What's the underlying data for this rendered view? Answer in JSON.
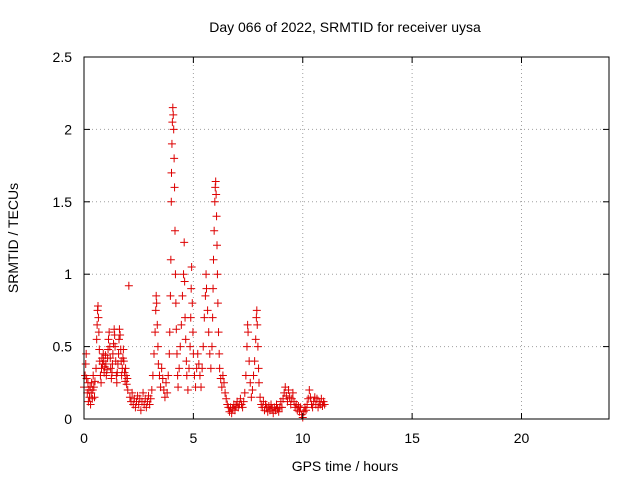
{
  "chart_data": {
    "type": "scatter",
    "title": "Day 066 of 2022, SRMTID for receiver uysa",
    "xlabel": "GPS time / hours",
    "ylabel": "SRMTID / TECUs",
    "xlim": [
      0,
      24
    ],
    "ylim": [
      0,
      2.5
    ],
    "xticks": [
      0,
      5,
      10,
      15,
      20
    ],
    "yticks": [
      0,
      0.5,
      1,
      1.5,
      2,
      2.5
    ],
    "xtick_labels": [
      "0",
      "5",
      "10",
      "15",
      "20"
    ],
    "ytick_labels": [
      "0",
      "0.5",
      "1",
      "1.5",
      "2",
      "2.5"
    ],
    "grid": true,
    "marker": "+",
    "marker_color": "#dd0000",
    "series": [
      {
        "name": "SRMTID",
        "points": [
          [
            0.0,
            0.22
          ],
          [
            0.05,
            0.3
          ],
          [
            0.08,
            0.38
          ],
          [
            0.1,
            0.45
          ],
          [
            0.12,
            0.28
          ],
          [
            0.15,
            0.18
          ],
          [
            0.18,
            0.25
          ],
          [
            0.2,
            0.12
          ],
          [
            0.22,
            0.2
          ],
          [
            0.25,
            0.15
          ],
          [
            0.28,
            0.22
          ],
          [
            0.3,
            0.1
          ],
          [
            0.33,
            0.18
          ],
          [
            0.35,
            0.25
          ],
          [
            0.38,
            0.14
          ],
          [
            0.4,
            0.2
          ],
          [
            0.42,
            0.3
          ],
          [
            0.45,
            0.22
          ],
          [
            0.48,
            0.15
          ],
          [
            0.5,
            0.26
          ],
          [
            0.55,
            0.35
          ],
          [
            0.58,
            0.55
          ],
          [
            0.6,
            0.65
          ],
          [
            0.62,
            0.75
          ],
          [
            0.64,
            0.78
          ],
          [
            0.66,
            0.7
          ],
          [
            0.68,
            0.6
          ],
          [
            0.7,
            0.48
          ],
          [
            0.72,
            0.4
          ],
          [
            0.75,
            0.3
          ],
          [
            0.78,
            0.25
          ],
          [
            0.8,
            0.35
          ],
          [
            0.82,
            0.42
          ],
          [
            0.85,
            0.38
          ],
          [
            0.88,
            0.45
          ],
          [
            0.9,
            0.4
          ],
          [
            0.92,
            0.32
          ],
          [
            0.95,
            0.36
          ],
          [
            0.98,
            0.44
          ],
          [
            1.0,
            0.38
          ],
          [
            1.02,
            0.3
          ],
          [
            1.05,
            0.34
          ],
          [
            1.08,
            0.42
          ],
          [
            1.1,
            0.48
          ],
          [
            1.12,
            0.55
          ],
          [
            1.15,
            0.6
          ],
          [
            1.18,
            0.5
          ],
          [
            1.2,
            0.42
          ],
          [
            1.22,
            0.35
          ],
          [
            1.25,
            0.28
          ],
          [
            1.28,
            0.32
          ],
          [
            1.3,
            0.38
          ],
          [
            1.32,
            0.45
          ],
          [
            1.35,
            0.52
          ],
          [
            1.38,
            0.62
          ],
          [
            1.4,
            0.58
          ],
          [
            1.42,
            0.5
          ],
          [
            1.45,
            0.4
          ],
          [
            1.48,
            0.3
          ],
          [
            1.5,
            0.25
          ],
          [
            1.52,
            0.32
          ],
          [
            1.55,
            0.38
          ],
          [
            1.58,
            0.45
          ],
          [
            1.6,
            0.55
          ],
          [
            1.62,
            0.62
          ],
          [
            1.65,
            0.58
          ],
          [
            1.68,
            0.48
          ],
          [
            1.7,
            0.4
          ],
          [
            1.72,
            0.3
          ],
          [
            1.75,
            0.35
          ],
          [
            1.78,
            0.42
          ],
          [
            1.8,
            0.48
          ],
          [
            1.82,
            0.4
          ],
          [
            1.85,
            0.32
          ],
          [
            1.88,
            0.26
          ],
          [
            1.9,
            0.35
          ],
          [
            1.92,
            0.3
          ],
          [
            1.95,
            0.24
          ],
          [
            1.98,
            0.28
          ],
          [
            2.0,
            0.2
          ],
          [
            2.05,
            0.92
          ],
          [
            2.1,
            0.15
          ],
          [
            2.15,
            0.12
          ],
          [
            2.2,
            0.18
          ],
          [
            2.25,
            0.1
          ],
          [
            2.3,
            0.14
          ],
          [
            2.35,
            0.08
          ],
          [
            2.4,
            0.12
          ],
          [
            2.45,
            0.16
          ],
          [
            2.5,
            0.1
          ],
          [
            2.55,
            0.14
          ],
          [
            2.6,
            0.06
          ],
          [
            2.65,
            0.12
          ],
          [
            2.7,
            0.18
          ],
          [
            2.75,
            0.1
          ],
          [
            2.8,
            0.14
          ],
          [
            2.85,
            0.08
          ],
          [
            2.9,
            0.12
          ],
          [
            2.95,
            0.16
          ],
          [
            3.0,
            0.1
          ],
          [
            3.05,
            0.14
          ],
          [
            3.1,
            0.2
          ],
          [
            3.15,
            0.3
          ],
          [
            3.2,
            0.45
          ],
          [
            3.25,
            0.6
          ],
          [
            3.28,
            0.75
          ],
          [
            3.3,
            0.85
          ],
          [
            3.32,
            0.8
          ],
          [
            3.35,
            0.65
          ],
          [
            3.38,
            0.5
          ],
          [
            3.4,
            0.38
          ],
          [
            3.45,
            0.3
          ],
          [
            3.5,
            0.22
          ],
          [
            3.55,
            0.35
          ],
          [
            3.6,
            0.28
          ],
          [
            3.65,
            0.2
          ],
          [
            3.7,
            0.15
          ],
          [
            3.75,
            0.25
          ],
          [
            3.8,
            0.18
          ],
          [
            3.85,
            0.3
          ],
          [
            3.9,
            0.45
          ],
          [
            3.92,
            0.6
          ],
          [
            3.95,
            0.85
          ],
          [
            3.97,
            1.1
          ],
          [
            3.99,
            1.5
          ],
          [
            4.0,
            1.7
          ],
          [
            4.02,
            1.9
          ],
          [
            4.04,
            2.05
          ],
          [
            4.06,
            2.15
          ],
          [
            4.08,
            2.1
          ],
          [
            4.1,
            2.0
          ],
          [
            4.12,
            1.8
          ],
          [
            4.14,
            1.6
          ],
          [
            4.16,
            1.3
          ],
          [
            4.18,
            1.0
          ],
          [
            4.2,
            0.8
          ],
          [
            4.22,
            0.62
          ],
          [
            4.25,
            0.45
          ],
          [
            4.28,
            0.3
          ],
          [
            4.3,
            0.22
          ],
          [
            4.35,
            0.35
          ],
          [
            4.4,
            0.5
          ],
          [
            4.45,
            0.65
          ],
          [
            4.5,
            0.85
          ],
          [
            4.55,
            1.0
          ],
          [
            4.58,
            1.22
          ],
          [
            4.6,
            0.95
          ],
          [
            4.62,
            0.7
          ],
          [
            4.65,
            0.55
          ],
          [
            4.68,
            0.4
          ],
          [
            4.7,
            0.3
          ],
          [
            4.75,
            0.2
          ],
          [
            4.8,
            0.35
          ],
          [
            4.85,
            0.5
          ],
          [
            4.88,
            0.7
          ],
          [
            4.9,
            0.9
          ],
          [
            4.92,
            1.05
          ],
          [
            4.95,
            0.8
          ],
          [
            4.98,
            0.6
          ],
          [
            5.0,
            0.45
          ],
          [
            5.05,
            0.3
          ],
          [
            5.1,
            0.22
          ],
          [
            5.15,
            0.35
          ],
          [
            5.2,
            0.45
          ],
          [
            5.25,
            0.38
          ],
          [
            5.3,
            0.3
          ],
          [
            5.35,
            0.22
          ],
          [
            5.4,
            0.35
          ],
          [
            5.45,
            0.5
          ],
          [
            5.5,
            0.7
          ],
          [
            5.55,
            0.85
          ],
          [
            5.58,
            1.0
          ],
          [
            5.6,
            0.9
          ],
          [
            5.65,
            0.75
          ],
          [
            5.7,
            0.6
          ],
          [
            5.75,
            0.45
          ],
          [
            5.8,
            0.35
          ],
          [
            5.85,
            0.5
          ],
          [
            5.88,
            0.7
          ],
          [
            5.9,
            0.9
          ],
          [
            5.92,
            1.1
          ],
          [
            5.95,
            1.3
          ],
          [
            5.98,
            1.5
          ],
          [
            6.0,
            1.6
          ],
          [
            6.02,
            1.64
          ],
          [
            6.04,
            1.55
          ],
          [
            6.06,
            1.4
          ],
          [
            6.08,
            1.2
          ],
          [
            6.1,
            1.0
          ],
          [
            6.12,
            0.8
          ],
          [
            6.15,
            0.6
          ],
          [
            6.18,
            0.45
          ],
          [
            6.2,
            0.35
          ],
          [
            6.25,
            0.28
          ],
          [
            6.3,
            0.22
          ],
          [
            6.35,
            0.3
          ],
          [
            6.4,
            0.25
          ],
          [
            6.45,
            0.18
          ],
          [
            6.5,
            0.14
          ],
          [
            6.55,
            0.1
          ],
          [
            6.6,
            0.08
          ],
          [
            6.65,
            0.05
          ],
          [
            6.7,
            0.08
          ],
          [
            6.75,
            0.04
          ],
          [
            6.8,
            0.07
          ],
          [
            6.85,
            0.1
          ],
          [
            6.9,
            0.06
          ],
          [
            6.95,
            0.09
          ],
          [
            7.0,
            0.12
          ],
          [
            7.05,
            0.08
          ],
          [
            7.1,
            0.1
          ],
          [
            7.15,
            0.14
          ],
          [
            7.2,
            0.1
          ],
          [
            7.25,
            0.08
          ],
          [
            7.3,
            0.12
          ],
          [
            7.35,
            0.18
          ],
          [
            7.4,
            0.3
          ],
          [
            7.45,
            0.5
          ],
          [
            7.48,
            0.65
          ],
          [
            7.5,
            0.6
          ],
          [
            7.55,
            0.4
          ],
          [
            7.6,
            0.25
          ],
          [
            7.65,
            0.15
          ],
          [
            7.7,
            0.2
          ],
          [
            7.75,
            0.3
          ],
          [
            7.8,
            0.4
          ],
          [
            7.85,
            0.55
          ],
          [
            7.88,
            0.7
          ],
          [
            7.9,
            0.75
          ],
          [
            7.92,
            0.65
          ],
          [
            7.95,
            0.5
          ],
          [
            7.98,
            0.35
          ],
          [
            8.0,
            0.25
          ],
          [
            8.05,
            0.15
          ],
          [
            8.1,
            0.1
          ],
          [
            8.15,
            0.08
          ],
          [
            8.2,
            0.12
          ],
          [
            8.25,
            0.06
          ],
          [
            8.3,
            0.1
          ],
          [
            8.35,
            0.08
          ],
          [
            8.4,
            0.05
          ],
          [
            8.45,
            0.09
          ],
          [
            8.5,
            0.06
          ],
          [
            8.55,
            0.1
          ],
          [
            8.6,
            0.07
          ],
          [
            8.65,
            0.04
          ],
          [
            8.7,
            0.08
          ],
          [
            8.75,
            0.06
          ],
          [
            8.8,
            0.1
          ],
          [
            8.85,
            0.07
          ],
          [
            8.9,
            0.05
          ],
          [
            8.95,
            0.08
          ],
          [
            9.0,
            0.12
          ],
          [
            9.05,
            0.08
          ],
          [
            9.1,
            0.14
          ],
          [
            9.15,
            0.18
          ],
          [
            9.2,
            0.22
          ],
          [
            9.25,
            0.16
          ],
          [
            9.3,
            0.12
          ],
          [
            9.35,
            0.2
          ],
          [
            9.4,
            0.15
          ],
          [
            9.45,
            0.1
          ],
          [
            9.5,
            0.14
          ],
          [
            9.55,
            0.18
          ],
          [
            9.6,
            0.12
          ],
          [
            9.65,
            0.08
          ],
          [
            9.7,
            0.1
          ],
          [
            9.75,
            0.06
          ],
          [
            9.8,
            0.09
          ],
          [
            9.85,
            0.05
          ],
          [
            9.9,
            0.08
          ],
          [
            9.95,
            0.03
          ],
          [
            10.0,
            0.01
          ],
          [
            10.05,
            0.05
          ],
          [
            10.1,
            0.08
          ],
          [
            10.15,
            0.06
          ],
          [
            10.2,
            0.1
          ],
          [
            10.25,
            0.14
          ],
          [
            10.3,
            0.2
          ],
          [
            10.35,
            0.15
          ],
          [
            10.4,
            0.1
          ],
          [
            10.45,
            0.08
          ],
          [
            10.5,
            0.12
          ],
          [
            10.55,
            0.15
          ],
          [
            10.6,
            0.1
          ],
          [
            10.65,
            0.14
          ],
          [
            10.7,
            0.08
          ],
          [
            10.75,
            0.12
          ],
          [
            10.8,
            0.1
          ],
          [
            10.85,
            0.14
          ],
          [
            10.9,
            0.09
          ],
          [
            10.95,
            0.12
          ],
          [
            11.0,
            0.1
          ]
        ]
      }
    ]
  }
}
